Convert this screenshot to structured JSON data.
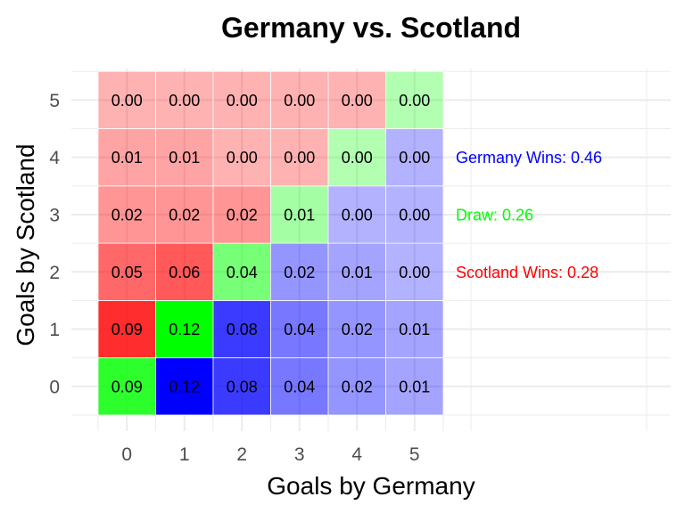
{
  "chart_data": {
    "type": "heatmap",
    "title": "Germany vs. Scotland",
    "xlabel": "Goals by Germany",
    "ylabel": "Goals by Scotland",
    "x_ticks": [
      "0",
      "1",
      "2",
      "3",
      "4",
      "5"
    ],
    "y_ticks": [
      "0",
      "1",
      "2",
      "3",
      "4",
      "5"
    ],
    "grid": true,
    "cells": [
      {
        "x": 0,
        "y": 0,
        "value": 0.09,
        "label": "0.09",
        "outcome": "draw"
      },
      {
        "x": 1,
        "y": 0,
        "value": 0.12,
        "label": "0.12",
        "outcome": "germany"
      },
      {
        "x": 2,
        "y": 0,
        "value": 0.08,
        "label": "0.08",
        "outcome": "germany"
      },
      {
        "x": 3,
        "y": 0,
        "value": 0.04,
        "label": "0.04",
        "outcome": "germany"
      },
      {
        "x": 4,
        "y": 0,
        "value": 0.02,
        "label": "0.02",
        "outcome": "germany"
      },
      {
        "x": 5,
        "y": 0,
        "value": 0.01,
        "label": "0.01",
        "outcome": "germany"
      },
      {
        "x": 0,
        "y": 1,
        "value": 0.09,
        "label": "0.09",
        "outcome": "scotland"
      },
      {
        "x": 1,
        "y": 1,
        "value": 0.12,
        "label": "0.12",
        "outcome": "draw"
      },
      {
        "x": 2,
        "y": 1,
        "value": 0.08,
        "label": "0.08",
        "outcome": "germany"
      },
      {
        "x": 3,
        "y": 1,
        "value": 0.04,
        "label": "0.04",
        "outcome": "germany"
      },
      {
        "x": 4,
        "y": 1,
        "value": 0.02,
        "label": "0.02",
        "outcome": "germany"
      },
      {
        "x": 5,
        "y": 1,
        "value": 0.01,
        "label": "0.01",
        "outcome": "germany"
      },
      {
        "x": 0,
        "y": 2,
        "value": 0.05,
        "label": "0.05",
        "outcome": "scotland"
      },
      {
        "x": 1,
        "y": 2,
        "value": 0.06,
        "label": "0.06",
        "outcome": "scotland"
      },
      {
        "x": 2,
        "y": 2,
        "value": 0.04,
        "label": "0.04",
        "outcome": "draw"
      },
      {
        "x": 3,
        "y": 2,
        "value": 0.02,
        "label": "0.02",
        "outcome": "germany"
      },
      {
        "x": 4,
        "y": 2,
        "value": 0.01,
        "label": "0.01",
        "outcome": "germany"
      },
      {
        "x": 5,
        "y": 2,
        "value": 0.0,
        "label": "0.00",
        "outcome": "germany"
      },
      {
        "x": 0,
        "y": 3,
        "value": 0.02,
        "label": "0.02",
        "outcome": "scotland"
      },
      {
        "x": 1,
        "y": 3,
        "value": 0.02,
        "label": "0.02",
        "outcome": "scotland"
      },
      {
        "x": 2,
        "y": 3,
        "value": 0.02,
        "label": "0.02",
        "outcome": "scotland"
      },
      {
        "x": 3,
        "y": 3,
        "value": 0.01,
        "label": "0.01",
        "outcome": "draw"
      },
      {
        "x": 4,
        "y": 3,
        "value": 0.0,
        "label": "0.00",
        "outcome": "germany"
      },
      {
        "x": 5,
        "y": 3,
        "value": 0.0,
        "label": "0.00",
        "outcome": "germany"
      },
      {
        "x": 0,
        "y": 4,
        "value": 0.01,
        "label": "0.01",
        "outcome": "scotland"
      },
      {
        "x": 1,
        "y": 4,
        "value": 0.01,
        "label": "0.01",
        "outcome": "scotland"
      },
      {
        "x": 2,
        "y": 4,
        "value": 0.0,
        "label": "0.00",
        "outcome": "scotland"
      },
      {
        "x": 3,
        "y": 4,
        "value": 0.0,
        "label": "0.00",
        "outcome": "scotland"
      },
      {
        "x": 4,
        "y": 4,
        "value": 0.0,
        "label": "0.00",
        "outcome": "draw"
      },
      {
        "x": 5,
        "y": 4,
        "value": 0.0,
        "label": "0.00",
        "outcome": "germany"
      },
      {
        "x": 0,
        "y": 5,
        "value": 0.0,
        "label": "0.00",
        "outcome": "scotland"
      },
      {
        "x": 1,
        "y": 5,
        "value": 0.0,
        "label": "0.00",
        "outcome": "scotland"
      },
      {
        "x": 2,
        "y": 5,
        "value": 0.0,
        "label": "0.00",
        "outcome": "scotland"
      },
      {
        "x": 3,
        "y": 5,
        "value": 0.0,
        "label": "0.00",
        "outcome": "scotland"
      },
      {
        "x": 4,
        "y": 5,
        "value": 0.0,
        "label": "0.00",
        "outcome": "scotland"
      },
      {
        "x": 5,
        "y": 5,
        "value": 0.0,
        "label": "0.00",
        "outcome": "draw"
      }
    ],
    "annotations": [
      {
        "text": "Germany Wins: 0.46",
        "color": "#0000ff",
        "row": 4
      },
      {
        "text": "Draw: 0.26",
        "color": "#00ff00",
        "row": 3
      },
      {
        "text": "Scotland Wins: 0.28",
        "color": "#ff0000",
        "row": 2
      }
    ],
    "colors": {
      "germany": "#0000ff",
      "draw": "#00ff00",
      "scotland": "#ff0000",
      "background": "#ffffff",
      "gridline": "#ebebeb",
      "tick_text": "#4d4d4d"
    }
  }
}
